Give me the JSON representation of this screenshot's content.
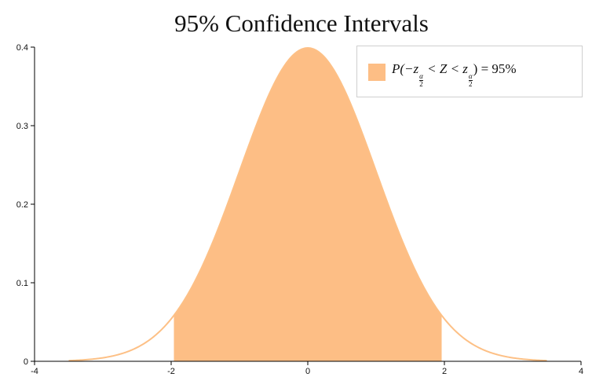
{
  "chart_data": {
    "type": "area",
    "title": "95% Confidence Intervals",
    "xlabel": "",
    "ylabel": "",
    "xlim": [
      -4,
      4
    ],
    "ylim": [
      0,
      0.4
    ],
    "x_ticks": [
      "-4",
      "-2",
      "0",
      "2",
      "4"
    ],
    "y_ticks": [
      "0",
      "0.1",
      "0.2",
      "0.3",
      "0.4"
    ],
    "curve": {
      "distribution": "standard normal",
      "x_range": [
        -3.5,
        3.5
      ],
      "color": "#fdc086"
    },
    "shaded_region": {
      "x_range": [
        -1.96,
        1.96
      ],
      "color": "#fdbe85"
    },
    "legend": {
      "position": "top-right",
      "label": "P(−z_{α/2} < Z < z_{α/2}) = 95%",
      "label_parts": {
        "p_open": "P(−",
        "z1": "z",
        "frac_num": "α",
        "frac_den": "2",
        "mid": " < Z < ",
        "z2": "z",
        "close": ") = 95%"
      }
    },
    "grid": false
  }
}
